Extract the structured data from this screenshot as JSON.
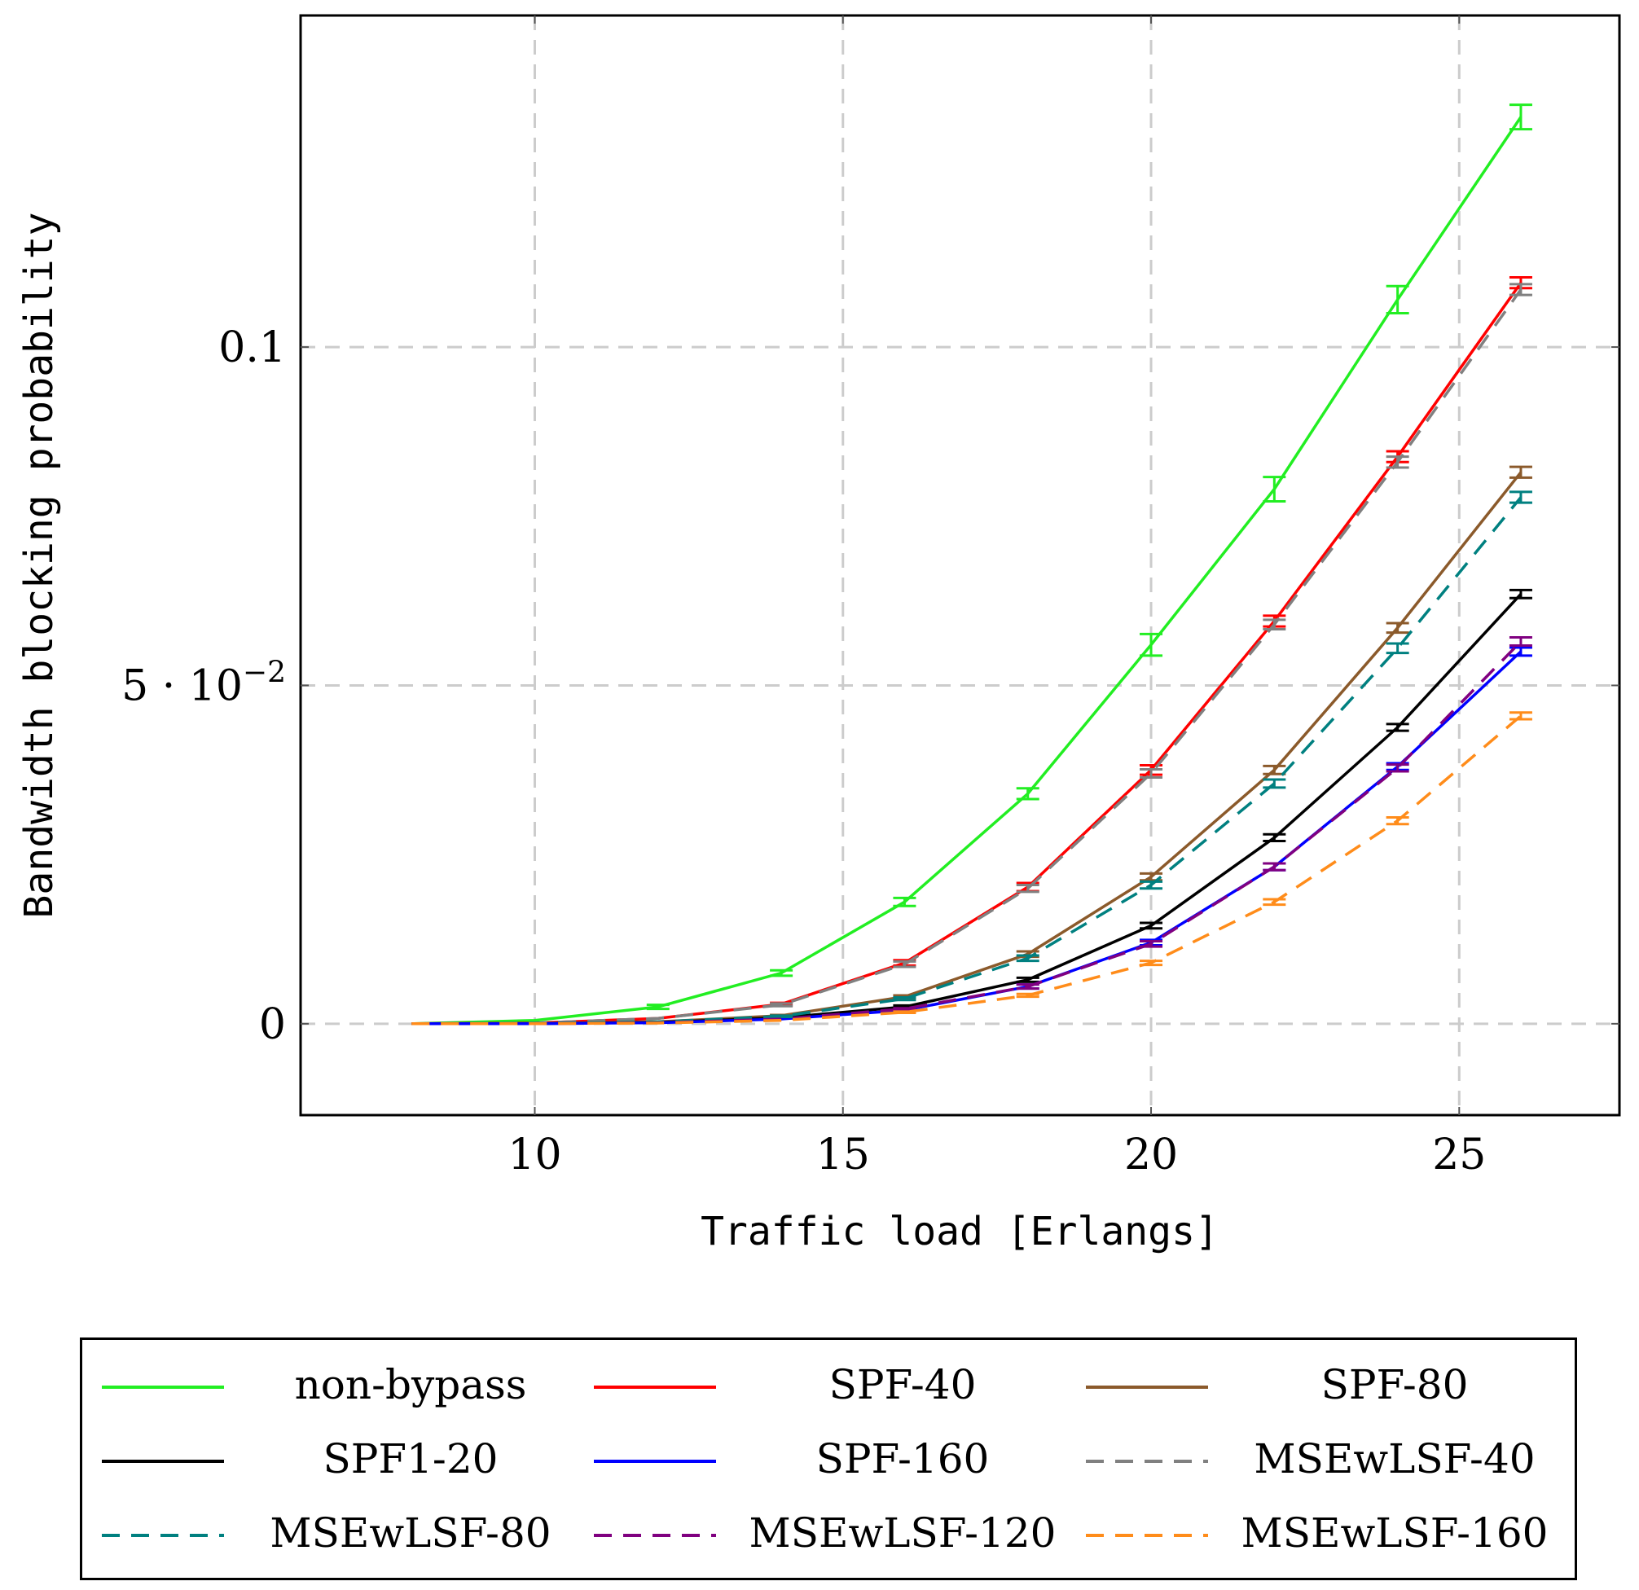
{
  "chart_data": {
    "type": "line",
    "xlabel": "Traffic load [Erlangs]",
    "ylabel": "Bandwidth blocking probability",
    "xlim": [
      6.2,
      27.6
    ],
    "ylim": [
      -0.0135,
      0.149
    ],
    "x_ticks": [
      {
        "value": 10,
        "label": "10"
      },
      {
        "value": 15,
        "label": "15"
      },
      {
        "value": 20,
        "label": "20"
      },
      {
        "value": 25,
        "label": "25"
      }
    ],
    "y_ticks": [
      {
        "value": 0,
        "label": "0"
      },
      {
        "value": 0.05,
        "label": "5 · 10",
        "sup": "−2"
      },
      {
        "value": 0.1,
        "label": "0.1"
      }
    ],
    "grid": true,
    "legend_position": "below",
    "x": [
      8,
      10,
      12,
      14,
      16,
      18,
      20,
      22,
      24,
      26
    ],
    "series": [
      {
        "name": "non-bypass",
        "color": "#22ee22",
        "dash": "solid",
        "values": [
          0,
          0.0005,
          0.0025,
          0.0075,
          0.018,
          0.034,
          0.056,
          0.079,
          0.107,
          0.134
        ],
        "errors": [
          0,
          0,
          0.0003,
          0.0004,
          0.0006,
          0.0008,
          0.0016,
          0.0018,
          0.002,
          0.0018
        ]
      },
      {
        "name": "SPF-40",
        "color": "#ff0000",
        "dash": "solid",
        "values": [
          0,
          0.0001,
          0.0008,
          0.0029,
          0.009,
          0.0202,
          0.0375,
          0.0595,
          0.0838,
          0.1095
        ],
        "errors": [
          0,
          0,
          0,
          0.0002,
          0.0004,
          0.0006,
          0.0007,
          0.0008,
          0.0008,
          0.0008
        ]
      },
      {
        "name": "SPF-80",
        "color": "#8b5a2b",
        "dash": "solid",
        "values": [
          0,
          5e-05,
          0.0003,
          0.0012,
          0.004,
          0.0103,
          0.0217,
          0.0375,
          0.0585,
          0.0815
        ],
        "errors": [
          0,
          0,
          0,
          0.0001,
          0.0002,
          0.0004,
          0.0005,
          0.0006,
          0.0007,
          0.0008
        ]
      },
      {
        "name": "SPF1-20",
        "color": "#000000",
        "dash": "solid",
        "values": [
          0,
          3e-05,
          0.0002,
          0.0009,
          0.0025,
          0.0065,
          0.0145,
          0.0275,
          0.0438,
          0.0635
        ],
        "errors": [
          0,
          0,
          0,
          0,
          0.0002,
          0.0003,
          0.0004,
          0.0005,
          0.0005,
          0.0006
        ]
      },
      {
        "name": "SPF-160",
        "color": "#0000ff",
        "dash": "solid",
        "values": [
          0,
          2e-05,
          0.00015,
          0.0007,
          0.002,
          0.0055,
          0.012,
          0.0232,
          0.038,
          0.055
        ],
        "errors": [
          0,
          0,
          0,
          0,
          0.0001,
          0.0003,
          0.0004,
          0.0005,
          0.0005,
          0.0006
        ]
      },
      {
        "name": "MSEwLSF-40",
        "color": "#808080",
        "dash": "dashed",
        "values": [
          0,
          0.0001,
          0.0008,
          0.0028,
          0.0088,
          0.02,
          0.037,
          0.059,
          0.083,
          0.1085
        ],
        "errors": [
          0,
          0,
          0,
          0.0002,
          0.0004,
          0.0005,
          0.0006,
          0.0007,
          0.0008,
          0.0008
        ]
      },
      {
        "name": "MSEwLSF-80",
        "color": "#008080",
        "dash": "dashed",
        "values": [
          0,
          5e-05,
          0.0003,
          0.0011,
          0.0037,
          0.0097,
          0.0205,
          0.0355,
          0.0555,
          0.0778
        ],
        "errors": [
          0,
          0,
          0,
          0.0001,
          0.0002,
          0.0004,
          0.0005,
          0.0006,
          0.0007,
          0.0008
        ]
      },
      {
        "name": "MSEwLSF-120",
        "color": "#800080",
        "dash": "dashed",
        "values": [
          0,
          2e-05,
          0.00015,
          0.0007,
          0.0022,
          0.0055,
          0.0118,
          0.0232,
          0.0378,
          0.0565
        ],
        "errors": [
          0,
          0,
          0,
          0,
          0.0001,
          0.0003,
          0.0004,
          0.0005,
          0.0005,
          0.0006
        ]
      },
      {
        "name": "MSEwLSF-160",
        "color": "#ff8c1a",
        "dash": "dashed",
        "values": [
          0,
          2e-05,
          0.0001,
          0.0005,
          0.0017,
          0.0042,
          0.009,
          0.018,
          0.03,
          0.0455
        ],
        "errors": [
          0,
          0,
          0,
          0,
          0.0001,
          0.0002,
          0.0003,
          0.0004,
          0.0005,
          0.0005
        ]
      }
    ]
  }
}
